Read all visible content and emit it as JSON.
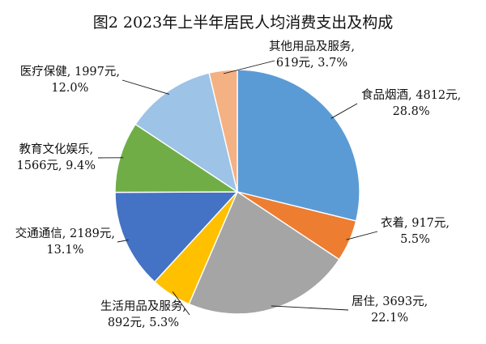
{
  "chart_data": {
    "type": "pie",
    "title": "图2  2023年上半年居民人均消费支出及构成",
    "start_angle_deg": 0,
    "direction": "clockwise",
    "slices": [
      {
        "name": "食品烟酒",
        "value": 4812,
        "percent": 28.8,
        "color": "#5B9BD5",
        "label_lines": [
          "食品烟酒, 4812元,",
          "28.8%"
        ]
      },
      {
        "name": "衣着",
        "value": 917,
        "percent": 5.5,
        "color": "#ED7D31",
        "label_lines": [
          "衣着, 917元,",
          "5.5%"
        ]
      },
      {
        "name": "居住",
        "value": 3693,
        "percent": 22.1,
        "color": "#A5A5A5",
        "label_lines": [
          "居住, 3693元,",
          "22.1%"
        ]
      },
      {
        "name": "生活用品及服务",
        "value": 892,
        "percent": 5.3,
        "color": "#FFC000",
        "label_lines": [
          "生活用品及服务,",
          "892元, 5.3%"
        ]
      },
      {
        "name": "交通通信",
        "value": 2189,
        "percent": 13.1,
        "color": "#4472C4",
        "label_lines": [
          "交通通信, 2189元,",
          "13.1%"
        ]
      },
      {
        "name": "教育文化娱乐",
        "value": 1566,
        "percent": 9.4,
        "color": "#70AD47",
        "label_lines": [
          "教育文化娱乐,",
          "1566元, 9.4%"
        ]
      },
      {
        "name": "医疗保健",
        "value": 1997,
        "percent": 12.0,
        "color": "#9DC3E6",
        "label_lines": [
          "医疗保健, 1997元,",
          "12.0%"
        ]
      },
      {
        "name": "其他用品及服务",
        "value": 619,
        "percent": 3.7,
        "color": "#F4B183",
        "label_lines": [
          "其他用品及服务,",
          "619元, 3.7%"
        ]
      }
    ]
  }
}
